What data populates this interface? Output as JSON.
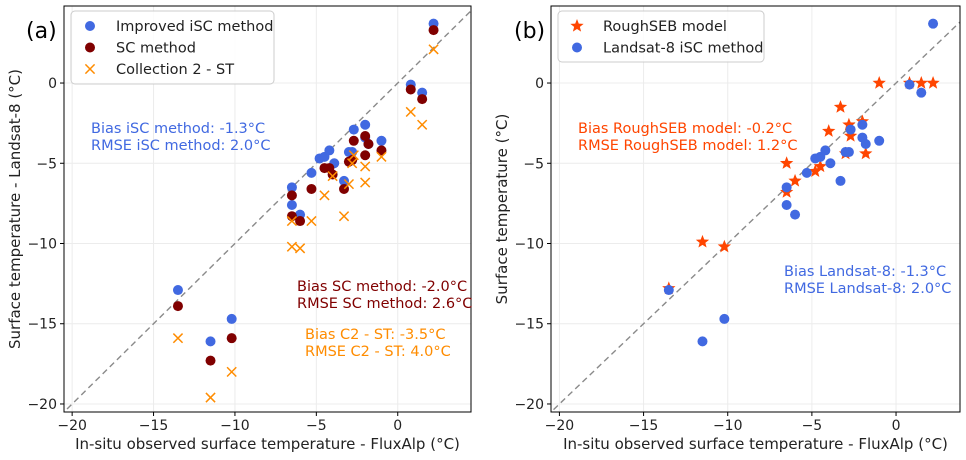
{
  "colors": {
    "blue": "#4169E1",
    "darkred": "#800000",
    "orange": "#FF8C00",
    "redorange": "#FF4500",
    "identity": "#8a8a8a"
  },
  "chart_data": [
    {
      "type": "scatter",
      "panel_label": "(a)",
      "xlabel": "In-situ observed surface temperature - FluxAlp (°C)",
      "ylabel": "Surface temperature - Landsat-8 (°C)",
      "xlim": [
        -20.5,
        4.5
      ],
      "ylim": [
        -20.5,
        4.8
      ],
      "xticks": [
        -20,
        -15,
        -10,
        -5,
        0
      ],
      "yticks": [
        -20,
        -15,
        -10,
        -5,
        0
      ],
      "identity_line": true,
      "grid": true,
      "legend_position": "top-left",
      "series": [
        {
          "name": "Improved iSC method",
          "marker": "circle",
          "color": "#4169E1",
          "x": [
            -13.5,
            -11.5,
            -10.2,
            -6.5,
            -6.5,
            -6.0,
            -5.3,
            -4.8,
            -4.5,
            -4.2,
            -3.9,
            -3.3,
            -3.0,
            -2.8,
            -2.7,
            -2.0,
            -2.0,
            -1.8,
            -1.0,
            0.8,
            1.5,
            2.2
          ],
          "y": [
            -12.9,
            -16.1,
            -14.7,
            -6.5,
            -7.6,
            -8.2,
            -5.6,
            -4.7,
            -4.6,
            -4.2,
            -5.0,
            -6.1,
            -4.3,
            -4.3,
            -2.9,
            -2.6,
            -3.4,
            -3.8,
            -3.6,
            -0.1,
            -0.6,
            3.7
          ]
        },
        {
          "name": "SC method",
          "marker": "circle",
          "color": "#800000",
          "x": [
            -13.5,
            -11.5,
            -10.2,
            -6.5,
            -6.5,
            -6.0,
            -5.3,
            -4.5,
            -4.2,
            -4.0,
            -3.3,
            -3.0,
            -2.8,
            -2.7,
            -2.0,
            -2.0,
            -1.8,
            -1.0,
            0.8,
            1.5,
            2.2
          ],
          "y": [
            -13.9,
            -17.3,
            -15.9,
            -8.3,
            -7.0,
            -8.6,
            -6.6,
            -5.3,
            -5.3,
            -5.7,
            -6.6,
            -4.9,
            -4.8,
            -3.6,
            -4.5,
            -3.3,
            -3.8,
            -4.2,
            -0.4,
            -1.0,
            3.3
          ]
        },
        {
          "name": "Collection 2 - ST",
          "marker": "x",
          "color": "#FF8C00",
          "x": [
            -13.5,
            -11.5,
            -10.2,
            -6.5,
            -6.5,
            -6.0,
            -5.3,
            -4.5,
            -4.0,
            -3.3,
            -3.0,
            -2.8,
            -2.7,
            -2.0,
            -2.0,
            -1.0,
            0.8,
            1.5,
            2.2
          ],
          "y": [
            -15.9,
            -19.6,
            -18.0,
            -10.2,
            -8.6,
            -10.3,
            -8.6,
            -7.0,
            -5.8,
            -8.3,
            -6.3,
            -5.0,
            -4.5,
            -6.2,
            -5.2,
            -4.6,
            -1.8,
            -2.6,
            2.1
          ]
        }
      ],
      "annotations": [
        {
          "lines": [
            "Bias iSC method: -1.3°C",
            "RMSE iSC method: 2.0°C"
          ],
          "color": "#4169E1"
        },
        {
          "lines": [
            "Bias SC method: -2.0°C",
            "RMSE SC method: 2.6°C"
          ],
          "color": "#800000"
        },
        {
          "lines": [
            "Bias C2 - ST: -3.5°C",
            "RMSE C2 - ST: 4.0°C"
          ],
          "color": "#FF8C00"
        }
      ]
    },
    {
      "type": "scatter",
      "panel_label": "(b)",
      "xlabel": "In-situ observed surface temperature - FluxAlp (°C)",
      "ylabel": "Surface temperature (°C)",
      "xlim": [
        -20.5,
        3.8
      ],
      "ylim": [
        -20.5,
        4.8
      ],
      "xticks": [
        -20,
        -15,
        -10,
        -5,
        0
      ],
      "yticks": [
        -20,
        -15,
        -10,
        -5,
        0
      ],
      "identity_line": true,
      "grid": true,
      "legend_position": "top-left",
      "series": [
        {
          "name": "RoughSEB model",
          "marker": "star",
          "color": "#FF4500",
          "x": [
            -13.5,
            -11.5,
            -10.2,
            -6.5,
            -6.5,
            -6.0,
            -4.8,
            -4.5,
            -4.0,
            -3.3,
            -3.0,
            -2.8,
            -2.7,
            -2.0,
            -1.8,
            -1.0,
            0.8,
            1.5,
            2.2
          ],
          "y": [
            -12.8,
            -9.9,
            -10.2,
            -6.8,
            -5.0,
            -6.1,
            -5.5,
            -5.2,
            -3.0,
            -1.5,
            -4.4,
            -2.6,
            -3.3,
            -2.4,
            -4.4,
            0.0,
            0.0,
            0.0,
            0.0
          ]
        },
        {
          "name": "Landsat-8 iSC method",
          "marker": "circle",
          "color": "#4169E1",
          "x": [
            -13.5,
            -11.5,
            -10.2,
            -6.5,
            -6.5,
            -6.0,
            -5.3,
            -4.8,
            -4.5,
            -4.2,
            -3.9,
            -3.3,
            -3.0,
            -2.8,
            -2.7,
            -2.0,
            -2.0,
            -1.8,
            -1.0,
            0.8,
            1.5,
            2.2
          ],
          "y": [
            -12.9,
            -16.1,
            -14.7,
            -6.5,
            -7.6,
            -8.2,
            -5.6,
            -4.7,
            -4.6,
            -4.2,
            -5.0,
            -6.1,
            -4.3,
            -4.3,
            -2.9,
            -2.6,
            -3.4,
            -3.8,
            -3.6,
            -0.1,
            -0.6,
            3.7
          ]
        }
      ],
      "annotations": [
        {
          "lines": [
            "Bias RoughSEB model: -0.2°C",
            "RMSE RoughSEB model: 1.2°C"
          ],
          "color": "#FF4500"
        },
        {
          "lines": [
            "Bias Landsat-8: -1.3°C",
            "RMSE Landsat-8: 2.0°C"
          ],
          "color": "#4169E1"
        }
      ]
    }
  ]
}
